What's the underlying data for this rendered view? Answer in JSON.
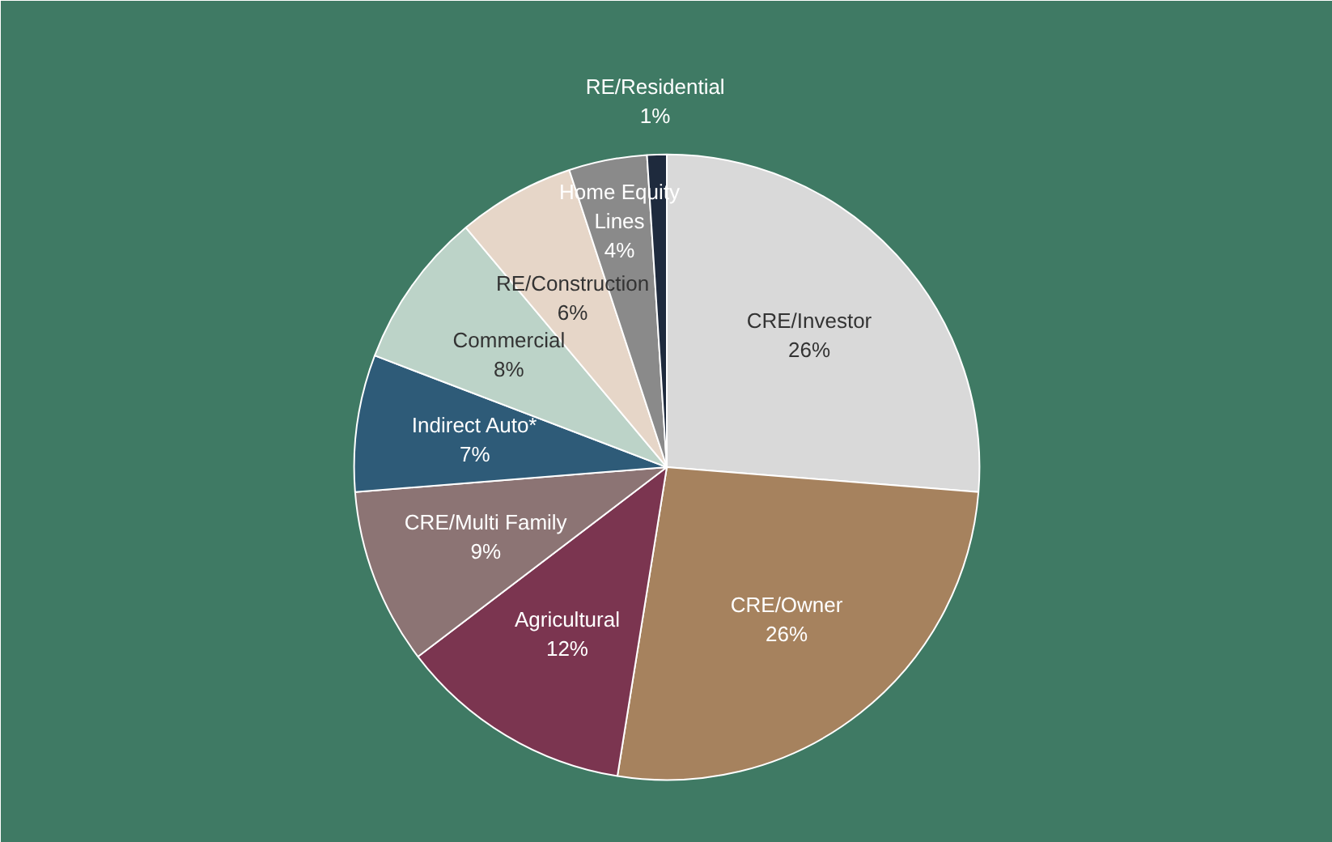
{
  "chart_data": {
    "type": "pie",
    "categories": [
      "CRE/Investor",
      "CRE/Owner",
      "Agricultural",
      "CRE/Multi Family",
      "Indirect Auto*",
      "Commercial",
      "RE/Construction",
      "Home Equity\nLines",
      "RE/Residential"
    ],
    "values": [
      26,
      26,
      12,
      9,
      7,
      8,
      6,
      4,
      1
    ],
    "value_labels": [
      "26%",
      "26%",
      "12%",
      "9%",
      "7%",
      "8%",
      "6%",
      "4%",
      "1%"
    ],
    "colors": [
      "#d9d9d9",
      "#a6825e",
      "#7b3550",
      "#8c7474",
      "#2e5b78",
      "#bcd3c8",
      "#e6d6c8",
      "#8a8a8a",
      "#1e2a3d"
    ],
    "legend": false
  }
}
